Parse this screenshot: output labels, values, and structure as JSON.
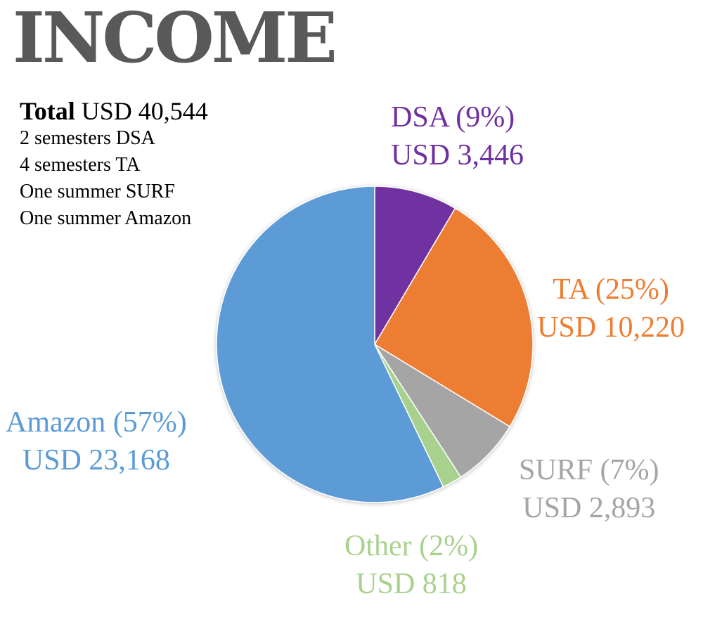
{
  "title": "INCOME",
  "summary": {
    "total_label": "Total",
    "total_value": "USD 40,544",
    "notes": [
      "2 semesters DSA",
      "4 semesters TA",
      "One summer SURF",
      "One summer Amazon"
    ]
  },
  "chart_data": {
    "type": "pie",
    "title": "INCOME",
    "total": 40544,
    "slices": [
      {
        "name": "DSA",
        "value": 3446,
        "percent": 9,
        "color": "#7030A0",
        "label_line1": "DSA (9%)",
        "label_line2": "USD 3,446"
      },
      {
        "name": "TA",
        "value": 10220,
        "percent": 25,
        "color": "#ED7D31",
        "label_line1": "TA (25%)",
        "label_line2": "USD 10,220"
      },
      {
        "name": "SURF",
        "value": 2893,
        "percent": 7,
        "color": "#A5A5A5",
        "label_line1": "SURF (7%)",
        "label_line2": "USD 2,893"
      },
      {
        "name": "Other",
        "value": 818,
        "percent": 2,
        "color": "#A9D18E",
        "label_line1": "Other (2%)",
        "label_line2": "USD 818"
      },
      {
        "name": "Amazon",
        "value": 23168,
        "percent": 57,
        "color": "#5B9BD5",
        "label_line1": "Amazon (57%)",
        "label_line2": "USD 23,168"
      }
    ],
    "start_angle": "12 o'clock",
    "direction": "clockwise"
  }
}
